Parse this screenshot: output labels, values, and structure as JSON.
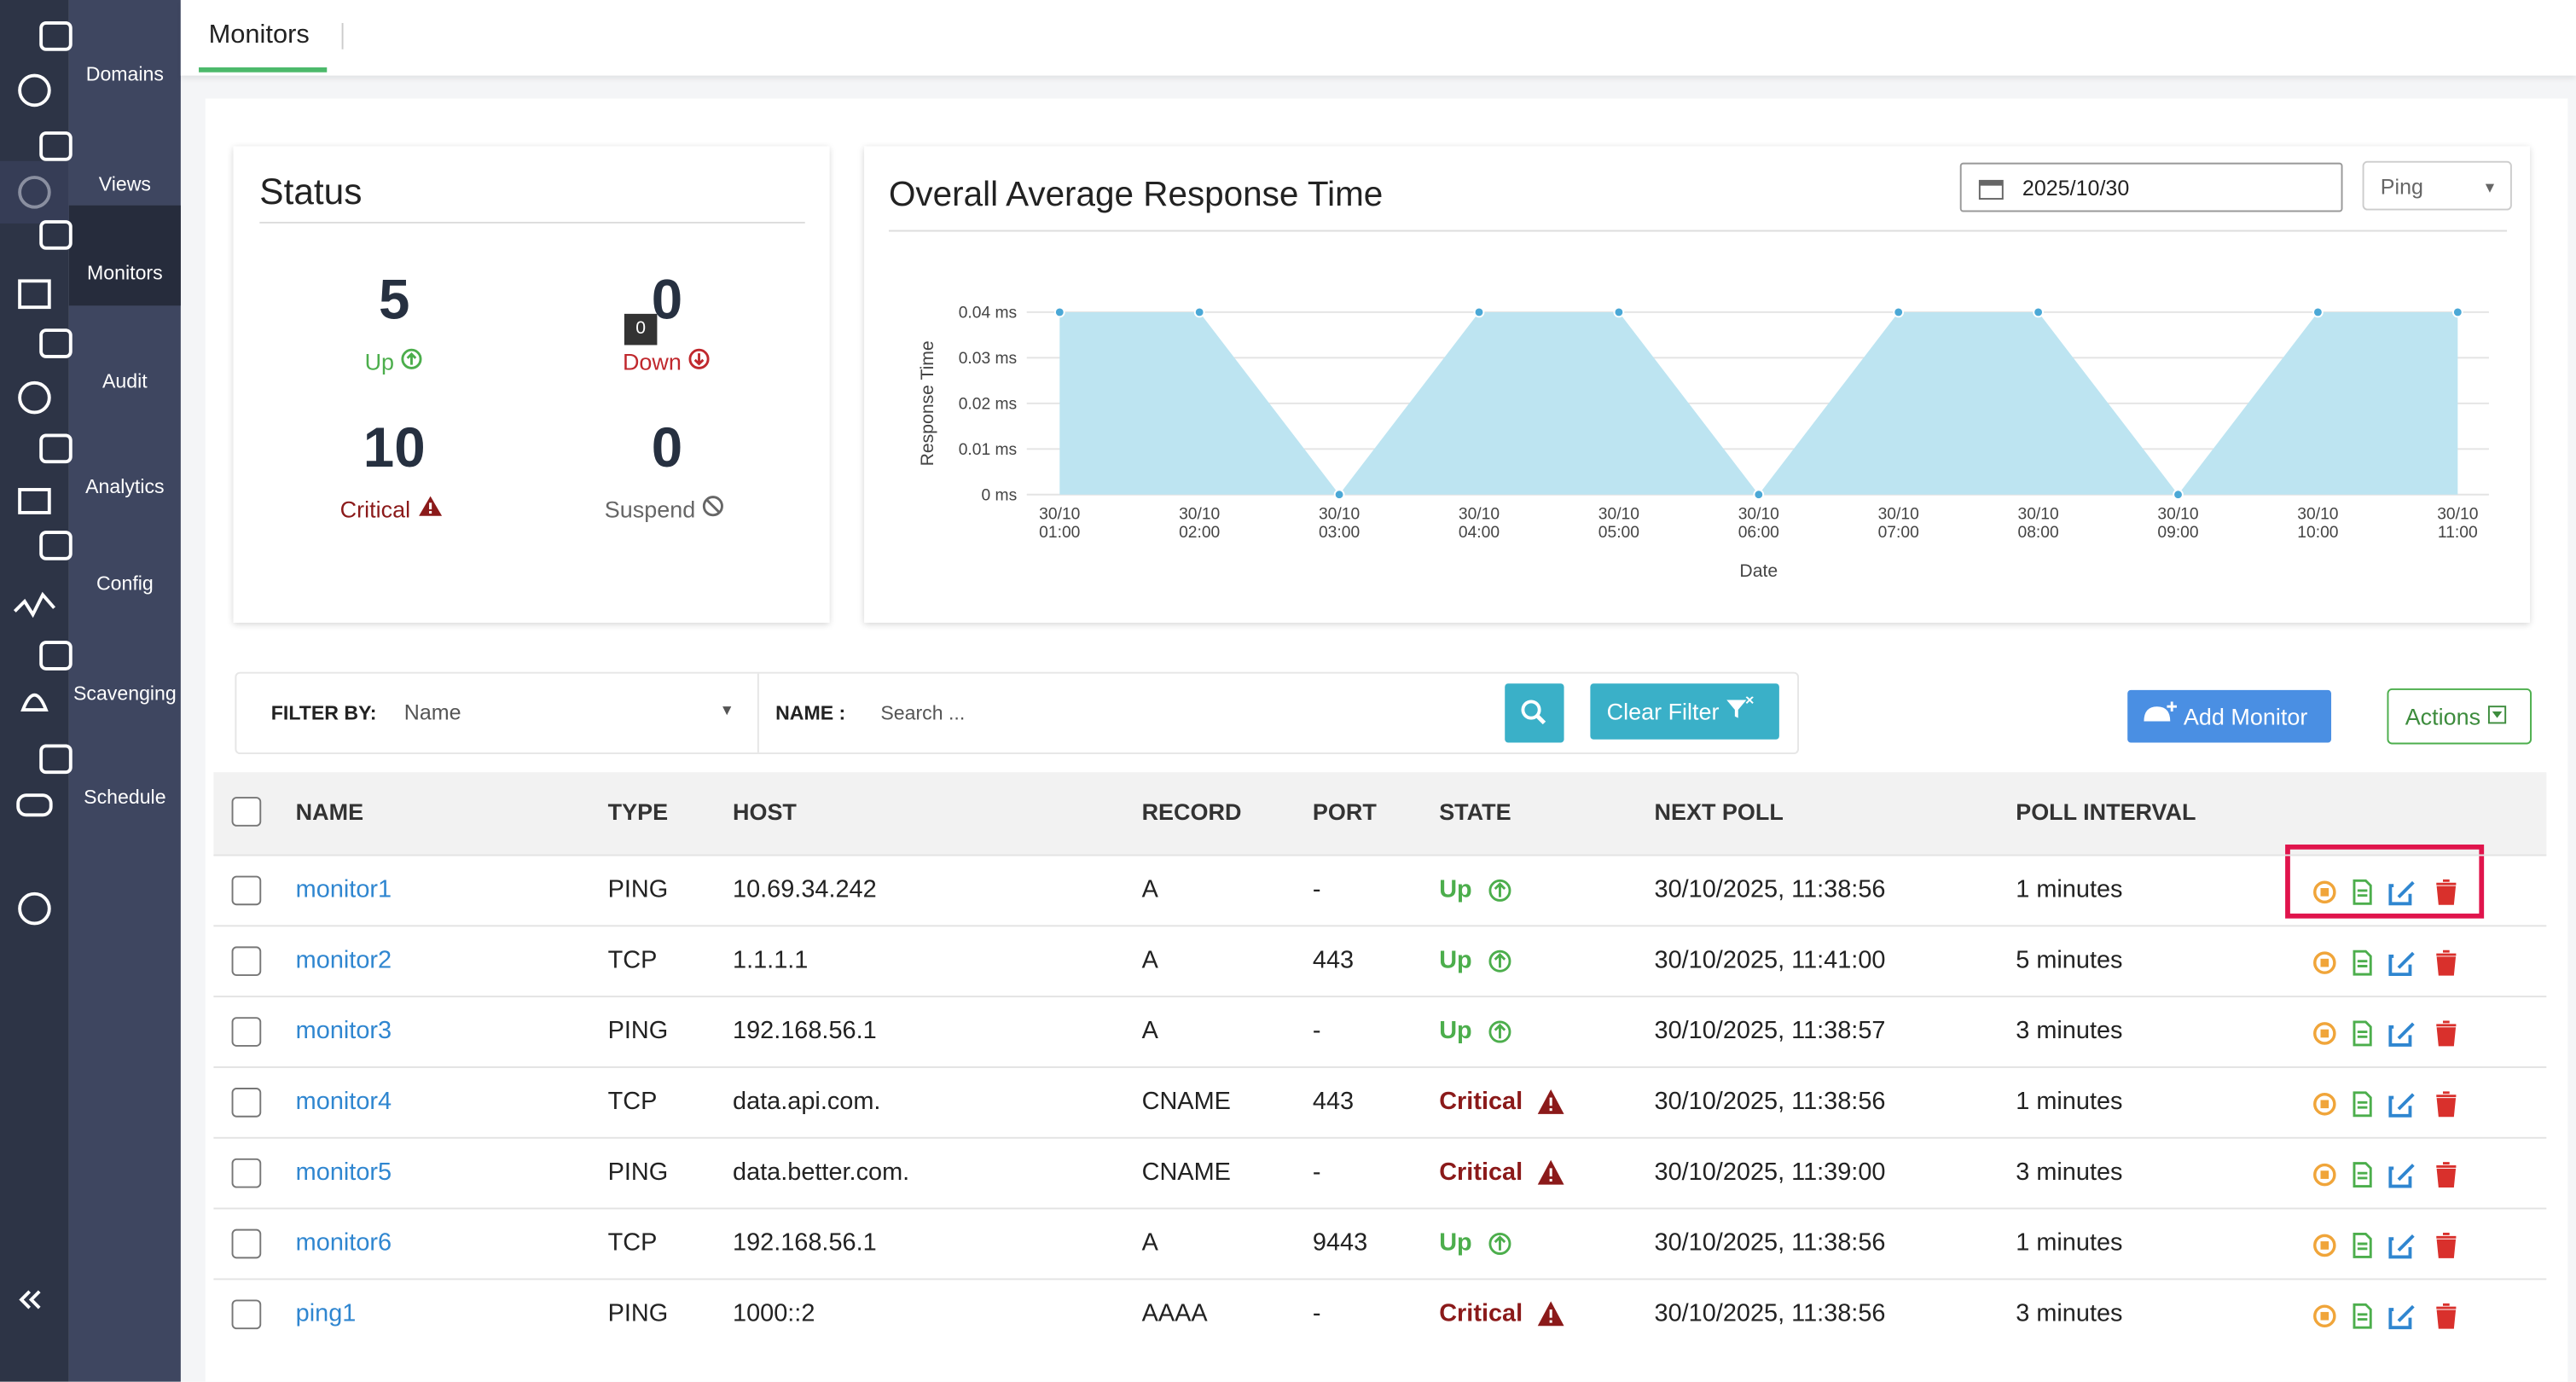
{
  "sidebar": {
    "items": [
      {
        "label": "Domains"
      },
      {
        "label": "Views"
      },
      {
        "label": "Monitors"
      },
      {
        "label": "Audit"
      },
      {
        "label": "Analytics"
      },
      {
        "label": "Config"
      },
      {
        "label": "Scavenging"
      },
      {
        "label": "Schedule"
      }
    ]
  },
  "tab": "Monitors",
  "status": {
    "title": "Status",
    "items": [
      {
        "value": 5,
        "label": "Up"
      },
      {
        "value": 0,
        "label": "Down",
        "tooltip": "0"
      },
      {
        "value": 10,
        "label": "Critical"
      },
      {
        "value": 0,
        "label": "Suspend"
      }
    ]
  },
  "chart_data": {
    "type": "area",
    "title": "Overall Average Response Time",
    "x_label": "Date",
    "y_label": "Response Time",
    "color": "#bde4f1",
    "point_color": "#4ba8d6",
    "categories": [
      "30/10\n01:00",
      "30/10\n02:00",
      "30/10\n03:00",
      "30/10\n04:00",
      "30/10\n05:00",
      "30/10\n06:00",
      "30/10\n07:00",
      "30/10\n08:00",
      "30/10\n09:00",
      "30/10\n10:00",
      "30/10\n11:00"
    ],
    "values": [
      0.04,
      0.04,
      0,
      0.04,
      0.04,
      0,
      0.04,
      0.04,
      0,
      0.04,
      0.04
    ],
    "ylim": [
      0,
      0.04
    ],
    "yticks": [
      {
        "value": 0,
        "label": "0 ms"
      },
      {
        "value": 0.01,
        "label": "0.01 ms"
      },
      {
        "value": 0.02,
        "label": "0.02 ms"
      },
      {
        "value": 0.03,
        "label": "0.03 ms"
      },
      {
        "value": 0.04,
        "label": "0.04 ms"
      }
    ],
    "grid": true
  },
  "date_picker": "2025/10/30",
  "protocol": "Ping",
  "filter": {
    "label": "FILTER BY:",
    "field": "Name",
    "name_label": "NAME :",
    "placeholder": "Search ...",
    "clear": "Clear Filter"
  },
  "buttons": {
    "add": "Add Monitor",
    "actions": "Actions"
  },
  "table": {
    "headers": [
      "NAME",
      "TYPE",
      "HOST",
      "RECORD",
      "PORT",
      "STATE",
      "NEXT POLL",
      "POLL INTERVAL"
    ],
    "rows": [
      [
        "monitor1",
        "PING",
        "10.69.34.242",
        "A",
        "-",
        "Up",
        "30/10/2025, 11:38:56",
        "1 minutes"
      ],
      [
        "monitor2",
        "TCP",
        "1.1.1.1",
        "A",
        "443",
        "Up",
        "30/10/2025, 11:41:00",
        "5 minutes"
      ],
      [
        "monitor3",
        "PING",
        "192.168.56.1",
        "A",
        "-",
        "Up",
        "30/10/2025, 11:38:57",
        "3 minutes"
      ],
      [
        "monitor4",
        "TCP",
        "data.api.com.",
        "CNAME",
        "443",
        "Critical",
        "30/10/2025, 11:38:56",
        "1 minutes"
      ],
      [
        "monitor5",
        "PING",
        "data.better.com.",
        "CNAME",
        "-",
        "Critical",
        "30/10/2025, 11:39:00",
        "3 minutes"
      ],
      [
        "monitor6",
        "TCP",
        "192.168.56.1",
        "A",
        "9443",
        "Up",
        "30/10/2025, 11:38:56",
        "1 minutes"
      ],
      [
        "ping1",
        "PING",
        "1000::2",
        "AAAA",
        "-",
        "Critical",
        "30/10/2025, 11:38:56",
        "3 minutes"
      ]
    ]
  }
}
